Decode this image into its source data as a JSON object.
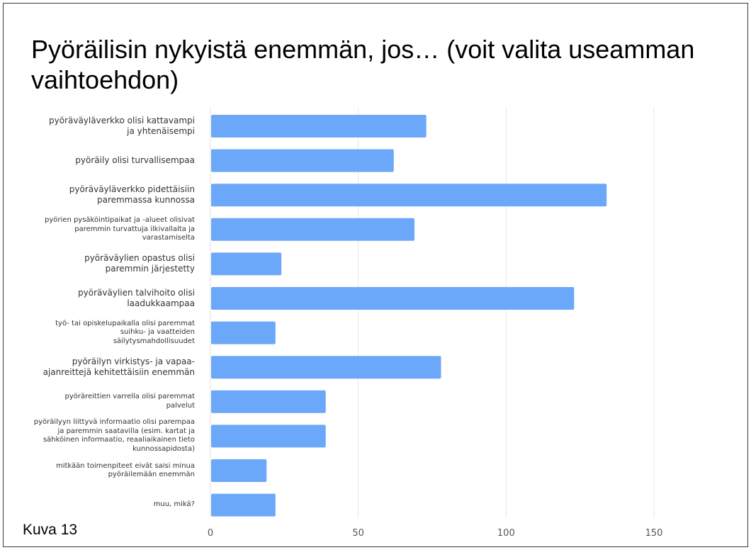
{
  "title": "Pyöräilisin nykyistä enemmän, jos… (voit valita useamman vaihtoehdon)",
  "caption": "Kuva 13",
  "colors": {
    "bar": "#6ba8f9",
    "grid": "#e6e6e6",
    "text": "#333333"
  },
  "chart_data": {
    "type": "bar",
    "orientation": "horizontal",
    "title": "Pyöräilisin nykyistä enemmän, jos… (voit valita useamman vaihtoehdon)",
    "xlabel": "",
    "ylabel": "",
    "xlim": [
      0,
      160
    ],
    "xticks": [
      0,
      50,
      100,
      150
    ],
    "grid": true,
    "legend": "none",
    "categories": [
      "pyöräväyläverkko olisi kattavampi ja yhtenäisempi",
      "pyöräily olisi turvallisempaa",
      "pyöräväyläverkko pidettäisiin paremmassa kunnossa",
      "pyörien pysäköintipaikat ja -alueet olisivat paremmin turvattuja ilkivallalta ja varastamiselta",
      "pyöräväylien opastus olisi paremmin järjestetty",
      "pyöräväylien talvihoito olisi laadukkaampaa",
      "työ- tai opiskelupaikalla olisi paremmat suihku- ja vaatteiden säilytysmahdollisuudet",
      "pyöräilyn virkistys- ja vapaa-ajanreittejä kehitettäisiin enemmän",
      "pyöräreittien varrella olisi paremmat palvelut",
      "pyöräilyyn liittyvä informaatio olisi parempaa ja paremmin saatavilla (esim. kartat ja sähköinen informaatio, reaaliaikainen tieto kunnossapidosta)",
      "mitkään toimenpiteet eivät saisi minua pyöräilemään enemmän",
      "muu, mikä?"
    ],
    "label_lines": [
      [
        "pyöräväyläverkko olisi kattavampi",
        "ja yhtenäisempi"
      ],
      [
        "pyöräily olisi turvallisempaa"
      ],
      [
        "pyöräväyläverkko pidettäisiin",
        "paremmassa kunnossa"
      ],
      [
        "pyörien pysäköintipaikat ja -alueet olisivat",
        "paremmin turvattuja ilkivallalta ja",
        "varastamiselta"
      ],
      [
        "pyöräväylien opastus olisi",
        "paremmin järjestetty"
      ],
      [
        "pyöräväylien talvihoito olisi",
        "laadukkaampaa"
      ],
      [
        "työ- tai opiskelupaikalla olisi paremmat",
        "suihku- ja vaatteiden",
        "säilytysmahdollisuudet"
      ],
      [
        "pyöräilyn virkistys- ja vapaa-",
        "ajanreittejä kehitettäisiin enemmän"
      ],
      [
        "pyöräreittien varrella olisi paremmat",
        "palvelut"
      ],
      [
        "pyöräilyyn liittyvä informaatio olisi parempaa",
        "ja paremmin saatavilla (esim. kartat ja",
        "sähköinen informaatio, reaaliaikainen tieto",
        "kunnossapidosta)"
      ],
      [
        "mitkään toimenpiteet eivät saisi minua",
        "pyöräilemään enemmän"
      ],
      [
        "muu, mikä?"
      ]
    ],
    "label_size": [
      "l",
      "l",
      "l",
      "s",
      "l",
      "l",
      "s",
      "l",
      "s",
      "s",
      "s",
      "s"
    ],
    "values": [
      73,
      62,
      134,
      69,
      24,
      123,
      22,
      78,
      39,
      39,
      19,
      22
    ]
  }
}
